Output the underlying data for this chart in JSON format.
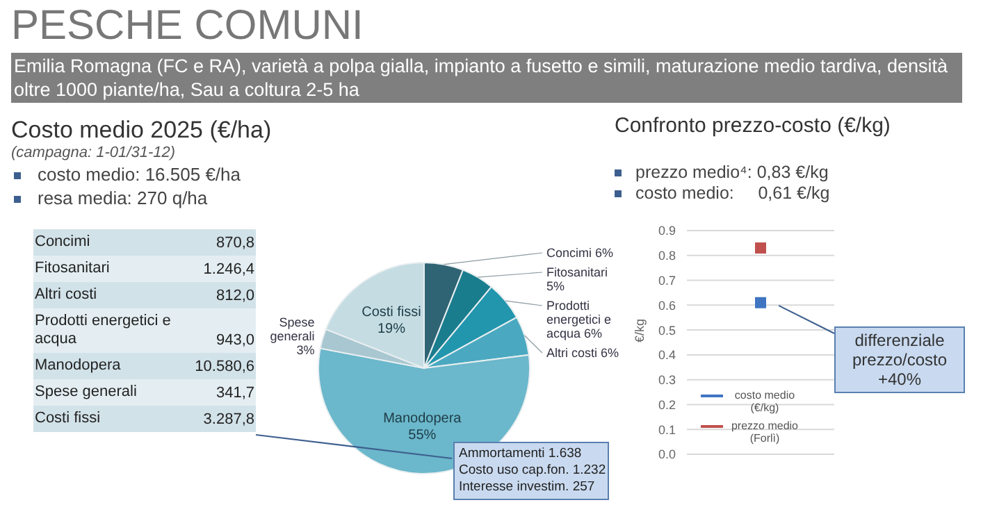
{
  "chart_data": [
    {
      "type": "pie",
      "title": "Costo medio 2025 (€/ha)",
      "subtitle": "(campagna: 1-01/31-12)",
      "annotations": [
        "PESCHE COMUNI",
        "Emilia Romagna (FC e RA), varietà a polpa gialla, impianto a fusetto e simili, maturazione medio tardiva, densità oltre 1000 piante/ha, Sau a coltura 2-5 ha",
        "costo medio: 16.505 €/ha",
        "resa media: 270 q/ha",
        "Ammortamenti 1.638",
        "Costo uso cap.fon. 1.232",
        "Interesse investim. 257"
      ],
      "categories": [
        "Concimi",
        "Fitosanitari",
        "Prodotti energetici e acqua",
        "Altri costi",
        "Manodopera",
        "Spese generali",
        "Costi fissi"
      ],
      "values": [
        6,
        5,
        6,
        6,
        55,
        3,
        19
      ],
      "value_labels": [
        "6%",
        "5%",
        "6%",
        "6%",
        "55%",
        "3%",
        "19%"
      ],
      "colors": [
        "#2f6474",
        "#1a7d8e",
        "#2296ad",
        "#4aa9c0",
        "#6bb7cb",
        "#a8c7d1",
        "#c5dce3"
      ]
    },
    {
      "type": "scatter",
      "title": "Confronto prezzo-costo (€/kg)",
      "annotations": [
        "prezzo medio⁴: 0,83 €/kg",
        "costo medio:     0,61 €/kg",
        "differenziale prezzo/costo +40%"
      ],
      "categories": [
        null
      ],
      "ylabel": "€/kg",
      "ylim": [
        0,
        0.9
      ],
      "yticks": [
        {
          "value": 0,
          "label": "0.0"
        },
        0.1,
        0.2,
        0.3,
        0.4,
        0.5,
        0.6,
        0.7,
        0.8,
        0.9
      ],
      "grid": "y",
      "legend": "bottom left",
      "marker": "square",
      "tick_labels": "y",
      "series": [
        {
          "name": "costo medio (€/kg)",
          "color": "#3f74c2",
          "values": [
            0.61
          ]
        },
        {
          "name": "prezzo medio (Forlì)",
          "color": "#c0504d",
          "values": [
            0.83
          ]
        }
      ]
    },
    {
      "type": "other",
      "categories": [
        "Concimi",
        "Fitosanitari",
        "Altri costi",
        "Prodotti energetici e acqua",
        "Manodopera",
        "Spese generali",
        "Costi fissi"
      ],
      "value_labels": [
        "870,8",
        "1.246,4",
        "812,0",
        "943,0",
        "10.580,6",
        "341,7",
        "3.287,8"
      ]
    }
  ]
}
